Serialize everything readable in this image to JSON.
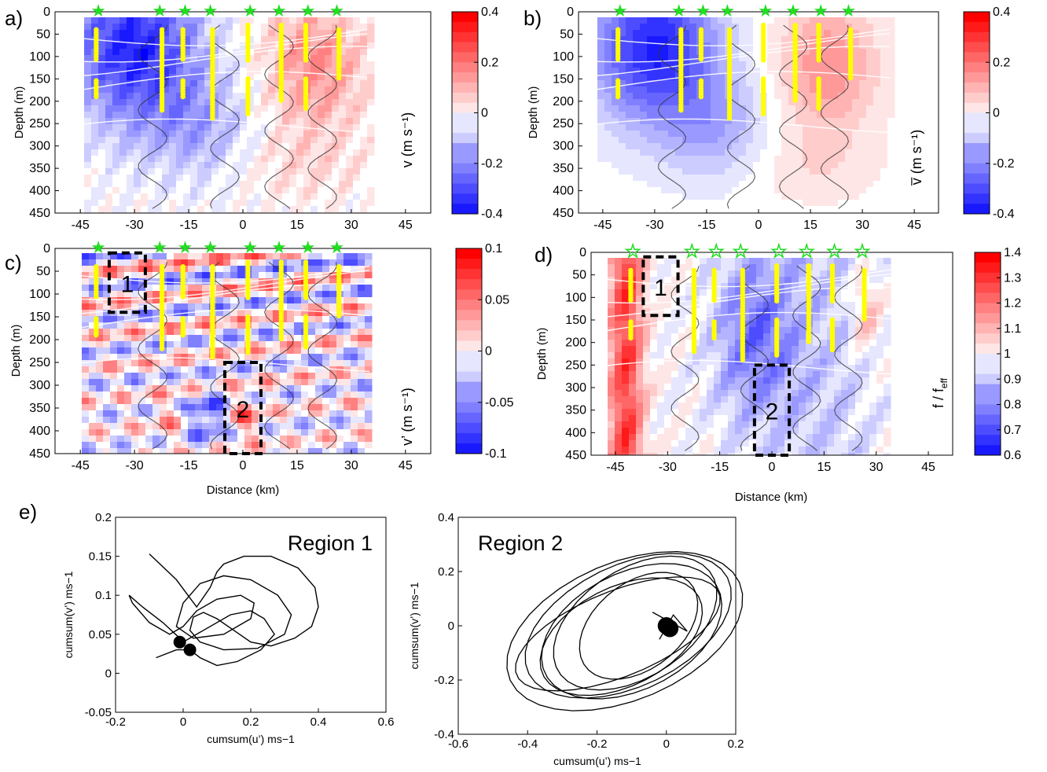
{
  "figure": {
    "panel_labels": [
      "a)",
      "b)",
      "c)",
      "d)",
      "e)"
    ]
  },
  "chart_data": [
    {
      "id": "a",
      "type": "heatmap",
      "ylabel": "Depth (m)",
      "xlabel": "",
      "x_ticks": [
        "-45",
        "-30",
        "-15",
        "0",
        "15",
        "30",
        "45"
      ],
      "y_ticks": [
        "0",
        "50",
        "100",
        "150",
        "200",
        "250",
        "300",
        "350",
        "400",
        "450"
      ],
      "xlim": [
        -52,
        52
      ],
      "ylim": [
        0,
        450
      ],
      "colorbar": {
        "label": "v (m s⁻¹)",
        "ticks": [
          "-0.4",
          "-0.2",
          "0",
          "0.2",
          "0.4"
        ],
        "range": [
          -0.4,
          0.4
        ]
      },
      "station_km": [
        -40,
        -23,
        -16,
        -9,
        2,
        10,
        18,
        26
      ],
      "color_low": "#0000ff",
      "color_high": "#ff0000"
    },
    {
      "id": "b",
      "type": "heatmap",
      "ylabel": "Depth (m)",
      "xlabel": "",
      "x_ticks": [
        "-45",
        "-30",
        "-15",
        "0",
        "15",
        "30",
        "45"
      ],
      "y_ticks": [
        "0",
        "50",
        "100",
        "150",
        "200",
        "250",
        "300",
        "350",
        "400",
        "450"
      ],
      "xlim": [
        -52,
        52
      ],
      "ylim": [
        0,
        450
      ],
      "colorbar": {
        "label": "v̅ (m s⁻¹)",
        "ticks": [
          "-0.4",
          "-0.2",
          "0",
          "0.2",
          "0.4"
        ],
        "range": [
          -0.4,
          0.4
        ]
      },
      "station_km": [
        -40,
        -23,
        -16,
        -9,
        2,
        10,
        18,
        26
      ]
    },
    {
      "id": "c",
      "type": "heatmap",
      "ylabel": "Depth (m)",
      "xlabel": "Distance (km)",
      "x_ticks": [
        "-45",
        "-30",
        "-15",
        "0",
        "15",
        "30",
        "45"
      ],
      "y_ticks": [
        "0",
        "50",
        "100",
        "150",
        "200",
        "250",
        "300",
        "350",
        "400",
        "450"
      ],
      "xlim": [
        -52,
        52
      ],
      "ylim": [
        0,
        450
      ],
      "colorbar": {
        "label": "v’ (m s⁻¹)",
        "ticks": [
          "-0.1",
          "-0.05",
          "0",
          "0.05",
          "0.1"
        ],
        "range": [
          -0.1,
          0.1
        ]
      },
      "station_km": [
        -40,
        -23,
        -16,
        -9,
        2,
        10,
        18,
        26
      ],
      "boxes": [
        {
          "label": "1",
          "x": [
            -37,
            -27
          ],
          "y": [
            10,
            140
          ]
        },
        {
          "label": "2",
          "x": [
            -5,
            5
          ],
          "y": [
            250,
            450
          ]
        }
      ]
    },
    {
      "id": "d",
      "type": "heatmap",
      "ylabel": "Depth (m)",
      "xlabel": "Distance (km)",
      "x_ticks": [
        "-45",
        "-30",
        "-15",
        "0",
        "15",
        "30",
        "45"
      ],
      "y_ticks": [
        "0",
        "50",
        "100",
        "150",
        "200",
        "250",
        "300",
        "350",
        "400",
        "450"
      ],
      "xlim": [
        -52,
        52
      ],
      "ylim": [
        0,
        450
      ],
      "colorbar": {
        "label": "f / f",
        "label_sub": "eff",
        "ticks": [
          "0.6",
          "0.7",
          "0.8",
          "0.9",
          "1",
          "1.1",
          "1.2",
          "1.3",
          "1.4"
        ],
        "range": [
          0.6,
          1.4
        ]
      },
      "station_km": [
        -40,
        -23,
        -16,
        -9,
        2,
        10,
        18,
        26
      ],
      "boxes": [
        {
          "label": "1",
          "x": [
            -37,
            -27
          ],
          "y": [
            10,
            140
          ]
        },
        {
          "label": "2",
          "x": [
            -5,
            5
          ],
          "y": [
            250,
            450
          ]
        }
      ]
    },
    {
      "id": "e1",
      "type": "line",
      "title": "Region 1",
      "xlabel": "cumsum(u’) ms−1",
      "ylabel": "cumsum(v’) ms−1",
      "x_ticks": [
        "-0.2",
        "0",
        "0.2",
        "0.4",
        "0.6"
      ],
      "y_ticks": [
        "-0.05",
        "0",
        "0.05",
        "0.1",
        "0.15",
        "0.2"
      ],
      "xlim": [
        -0.2,
        0.6
      ],
      "ylim": [
        -0.05,
        0.2
      ],
      "series": [
        {
          "x": [
            -0.1,
            -0.02,
            0.04,
            0.08,
            0.1,
            0.12,
            0.18,
            0.26,
            0.34,
            0.39,
            0.4,
            0.38,
            0.33,
            0.26,
            0.2,
            0.15,
            0.1,
            0.06,
            0.03,
            0.02,
            0.05,
            0.12,
            0.22,
            0.3,
            0.32,
            0.28,
            0.2,
            0.12,
            0.05,
            0.0,
            -0.02,
            0.03,
            0.12,
            0.2,
            0.21,
            0.17,
            0.1,
            0.04,
            0.0,
            -0.04,
            -0.1,
            -0.15,
            -0.16,
            -0.12,
            -0.06,
            -0.01,
            0.0,
            0.06,
            0.14,
            0.2,
            0.24,
            0.27,
            0.23,
            0.16,
            0.1,
            0.05,
            0.02,
            -0.02,
            -0.08
          ],
          "y": [
            0.153,
            0.12,
            0.085,
            0.11,
            0.13,
            0.14,
            0.15,
            0.15,
            0.135,
            0.11,
            0.085,
            0.06,
            0.045,
            0.035,
            0.04,
            0.055,
            0.07,
            0.078,
            0.072,
            0.055,
            0.04,
            0.03,
            0.032,
            0.05,
            0.075,
            0.1,
            0.12,
            0.125,
            0.115,
            0.09,
            0.06,
            0.045,
            0.05,
            0.07,
            0.09,
            0.1,
            0.095,
            0.08,
            0.06,
            0.05,
            0.065,
            0.09,
            0.1,
            0.085,
            0.065,
            0.045,
            0.04,
            0.055,
            0.075,
            0.08,
            0.07,
            0.05,
            0.03,
            0.015,
            0.01,
            0.02,
            0.03,
            0.03,
            0.02
          ]
        }
      ],
      "markers": [
        {
          "x": -0.01,
          "y": 0.04
        },
        {
          "x": 0.02,
          "y": 0.03
        }
      ]
    },
    {
      "id": "e2",
      "type": "line",
      "title": "Region 2",
      "xlabel": "cumsum(u’) ms−1",
      "ylabel": "cumsum(v’) ms−1",
      "x_ticks": [
        "-0.6",
        "-0.4",
        "-0.2",
        "0",
        "0.2"
      ],
      "y_ticks": [
        "-0.4",
        "-0.2",
        "0",
        "0.2",
        "0.4"
      ],
      "xlim": [
        -0.6,
        0.2
      ],
      "ylim": [
        -0.4,
        0.4
      ],
      "series": [
        {
          "center": [
            -0.12,
            -0.02
          ],
          "loops": [
            {
              "rx": 0.38,
              "ry": 0.24,
              "rot": 35,
              "dx": 0.0,
              "dy": 0.0
            },
            {
              "rx": 0.34,
              "ry": 0.21,
              "rot": 38,
              "dx": 0.01,
              "dy": 0.02
            },
            {
              "rx": 0.3,
              "ry": 0.2,
              "rot": 42,
              "dx": 0.02,
              "dy": 0.0
            },
            {
              "rx": 0.27,
              "ry": 0.17,
              "rot": 40,
              "dx": -0.01,
              "dy": -0.02
            },
            {
              "rx": 0.33,
              "ry": 0.15,
              "rot": 30,
              "dx": -0.02,
              "dy": -0.01
            },
            {
              "rx": 0.29,
              "ry": 0.18,
              "rot": 48,
              "dx": 0.03,
              "dy": 0.03
            },
            {
              "rx": 0.22,
              "ry": 0.14,
              "rot": 55,
              "dx": 0.04,
              "dy": 0.02
            }
          ]
        }
      ],
      "markers": [
        {
          "x": 0.0,
          "y": 0.0
        },
        {
          "x": 0.01,
          "y": -0.01
        }
      ]
    }
  ]
}
